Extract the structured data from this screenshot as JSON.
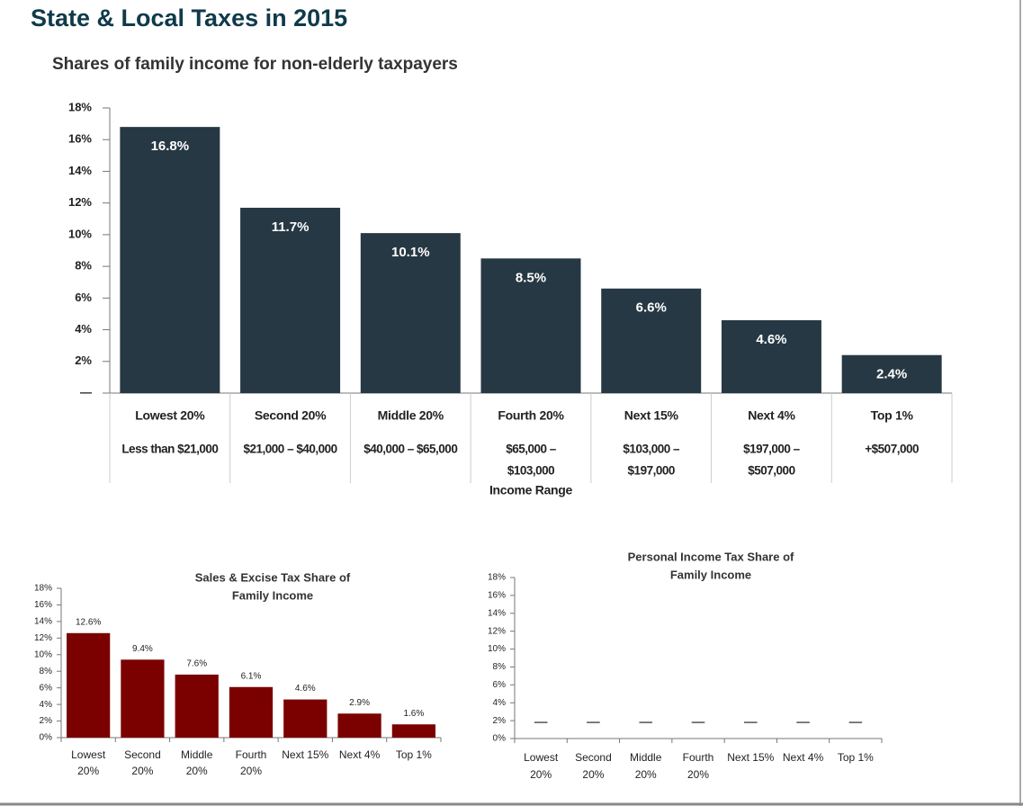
{
  "title": "State & Local Taxes in 2015",
  "chart_data": [
    {
      "type": "bar",
      "title": "Shares of family income for non-elderly taxpayers",
      "categories": [
        [
          "Lowest 20%"
        ],
        [
          "Second 20%"
        ],
        [
          "Middle 20%"
        ],
        [
          "Fourth 20%"
        ],
        [
          "Next 15%"
        ],
        [
          "Next 4%"
        ],
        [
          "Top 1%"
        ]
      ],
      "ranges": [
        [
          "Less than $21,000"
        ],
        [
          "$21,000 – $40,000"
        ],
        [
          "$40,000 – $65,000"
        ],
        [
          "$65,000 –",
          "$103,000"
        ],
        [
          "$103,000 –",
          "$197,000"
        ],
        [
          "$197,000 –",
          "$507,000"
        ],
        [
          "+$507,000"
        ]
      ],
      "xlabel": "Income Range",
      "values": [
        16.8,
        11.7,
        10.1,
        8.5,
        6.6,
        4.6,
        2.4
      ],
      "value_labels": [
        "16.8%",
        "11.7%",
        "10.1%",
        "8.5%",
        "6.6%",
        "4.6%",
        "2.4%"
      ],
      "color": "#263843",
      "ylim": [
        0,
        18
      ],
      "yticks": [
        {
          "value": 0,
          "label": "—"
        },
        {
          "value": 2,
          "label": "2%"
        },
        {
          "value": 4,
          "label": "4%"
        },
        {
          "value": 6,
          "label": "6%"
        },
        {
          "value": 8,
          "label": "8%"
        },
        {
          "value": 10,
          "label": "10%"
        },
        {
          "value": 12,
          "label": "12%"
        },
        {
          "value": 14,
          "label": "14%"
        },
        {
          "value": 16,
          "label": "16%"
        },
        {
          "value": 18,
          "label": "18%"
        }
      ]
    },
    {
      "type": "bar",
      "title": [
        "Sales & Excise Tax Share of",
        "Family Income"
      ],
      "categories": [
        [
          "Lowest",
          "20%"
        ],
        [
          "Second",
          "20%"
        ],
        [
          "Middle",
          "20%"
        ],
        [
          "Fourth",
          "20%"
        ],
        [
          "Next 15%"
        ],
        [
          "Next 4%"
        ],
        [
          "Top 1%"
        ]
      ],
      "values": [
        12.6,
        9.4,
        7.6,
        6.1,
        4.6,
        2.9,
        1.6
      ],
      "value_labels": [
        "12.6%",
        "9.4%",
        "7.6%",
        "6.1%",
        "4.6%",
        "2.9%",
        "1.6%"
      ],
      "color": "#7b0000",
      "ylim": [
        0,
        18
      ],
      "yticks": [
        {
          "value": 0,
          "label": "0%"
        },
        {
          "value": 2,
          "label": "2%"
        },
        {
          "value": 4,
          "label": "4%"
        },
        {
          "value": 6,
          "label": "6%"
        },
        {
          "value": 8,
          "label": "8%"
        },
        {
          "value": 10,
          "label": "10%"
        },
        {
          "value": 12,
          "label": "12%"
        },
        {
          "value": 14,
          "label": "14%"
        },
        {
          "value": 16,
          "label": "16%"
        },
        {
          "value": 18,
          "label": "18%"
        }
      ]
    },
    {
      "type": "dash",
      "title": [
        "Personal Income Tax Share of",
        "Family Income"
      ],
      "categories": [
        [
          "Lowest",
          "20%"
        ],
        [
          "Second",
          "20%"
        ],
        [
          "Middle",
          "20%"
        ],
        [
          "Fourth",
          "20%"
        ],
        [
          "Next 15%"
        ],
        [
          "Next 4%"
        ],
        [
          "Top 1%"
        ]
      ],
      "values": [
        1.8,
        1.8,
        1.8,
        1.8,
        1.8,
        1.8,
        1.8
      ],
      "color": "#555555",
      "ylim": [
        0,
        18
      ],
      "yticks": [
        {
          "value": 0,
          "label": "0%"
        },
        {
          "value": 2,
          "label": "2%"
        },
        {
          "value": 4,
          "label": "4%"
        },
        {
          "value": 6,
          "label": "6%"
        },
        {
          "value": 8,
          "label": "8%"
        },
        {
          "value": 10,
          "label": "10%"
        },
        {
          "value": 12,
          "label": "12%"
        },
        {
          "value": 14,
          "label": "14%"
        },
        {
          "value": 16,
          "label": "16%"
        },
        {
          "value": 18,
          "label": "18%"
        }
      ]
    }
  ]
}
